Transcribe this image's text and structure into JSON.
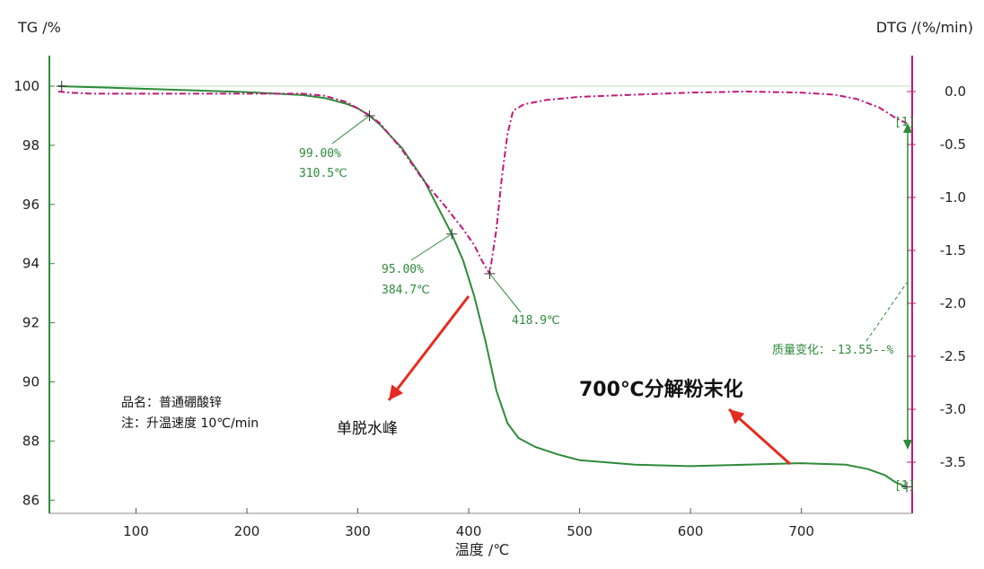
{
  "chart_data": {
    "type": "line",
    "xlabel": "温度 /℃",
    "ylabel_left": "TG /%",
    "ylabel_right": "DTG /(%/min)",
    "xlim": [
      30,
      795
    ],
    "ylim_left": [
      85.6,
      101.2
    ],
    "ylim_right": [
      -3.78,
      0.3
    ],
    "x_ticks": [
      "100",
      "200",
      "300",
      "400",
      "500",
      "600",
      "700"
    ],
    "y_left_ticks": [
      "100",
      "98",
      "96",
      "94",
      "92",
      "90",
      "88",
      "86"
    ],
    "y_right_ticks": [
      "0.0",
      "-0.5",
      "-1.0",
      "-1.5",
      "-2.0",
      "-2.5",
      "-3.0",
      "-3.5"
    ],
    "grid": false,
    "reference_line_y": 100,
    "colors": {
      "tg": "#2e8b3a",
      "dtg": "#c2187a",
      "arrow": "#e52b1f",
      "axis_right": "#c2187a",
      "axis_left": "#2e8b3a"
    },
    "series": [
      {
        "name": "TG",
        "axis": "left",
        "x": [
          30,
          50,
          100,
          150,
          200,
          250,
          270,
          290,
          300,
          310.5,
          320,
          340,
          360,
          384.7,
          395,
          405,
          415,
          425,
          435,
          445,
          460,
          480,
          500,
          550,
          600,
          650,
          700,
          740,
          760,
          775,
          785,
          795
        ],
        "y": [
          100.0,
          99.98,
          99.92,
          99.86,
          99.8,
          99.7,
          99.6,
          99.4,
          99.25,
          99.0,
          98.7,
          97.9,
          96.8,
          95.0,
          94.1,
          92.9,
          91.4,
          89.7,
          88.6,
          88.1,
          87.8,
          87.55,
          87.35,
          87.2,
          87.15,
          87.2,
          87.25,
          87.2,
          87.05,
          86.85,
          86.6,
          86.45
        ]
      },
      {
        "name": "DTG",
        "axis": "right",
        "x": [
          30,
          40,
          60,
          100,
          150,
          200,
          250,
          270,
          290,
          300,
          310,
          320,
          340,
          360,
          380,
          395,
          405,
          412,
          418.9,
          425,
          430,
          435,
          440,
          450,
          470,
          500,
          550,
          600,
          650,
          700,
          730,
          750,
          770,
          785,
          795
        ],
        "y": [
          0.0,
          -0.01,
          -0.02,
          -0.02,
          -0.02,
          -0.02,
          -0.02,
          -0.04,
          -0.1,
          -0.16,
          -0.22,
          -0.3,
          -0.55,
          -0.85,
          -1.1,
          -1.3,
          -1.45,
          -1.6,
          -1.72,
          -1.3,
          -0.8,
          -0.4,
          -0.18,
          -0.12,
          -0.08,
          -0.05,
          -0.03,
          -0.01,
          0.0,
          -0.01,
          -0.03,
          -0.07,
          -0.15,
          -0.25,
          -0.3
        ]
      }
    ],
    "markers": [
      {
        "series": "TG",
        "x": 310.5,
        "y": 99.0
      },
      {
        "series": "TG",
        "x": 384.7,
        "y": 95.0
      },
      {
        "series": "DTG",
        "x": 418.9,
        "y": -1.72
      },
      {
        "series": "TG",
        "x": 33,
        "y": 100.0
      },
      {
        "series": "TG",
        "x": 795,
        "y": 86.45
      }
    ],
    "annotations": {
      "p1_pct": "99.00%",
      "p1_temp": "310.5℃",
      "p2_pct": "95.00%",
      "p2_temp": "384.7℃",
      "peak_temp": "418.9℃",
      "mass_change": "质量变化：-13.55--%",
      "sample_name": "品名：普通硼酸锌",
      "note": "注：升温速度 10℃/min",
      "dehydration_peak": "单脱水峰",
      "decomposition": "700℃分解粉末化",
      "bracket_top": "[1]",
      "bracket_bottom": "[1]"
    }
  }
}
